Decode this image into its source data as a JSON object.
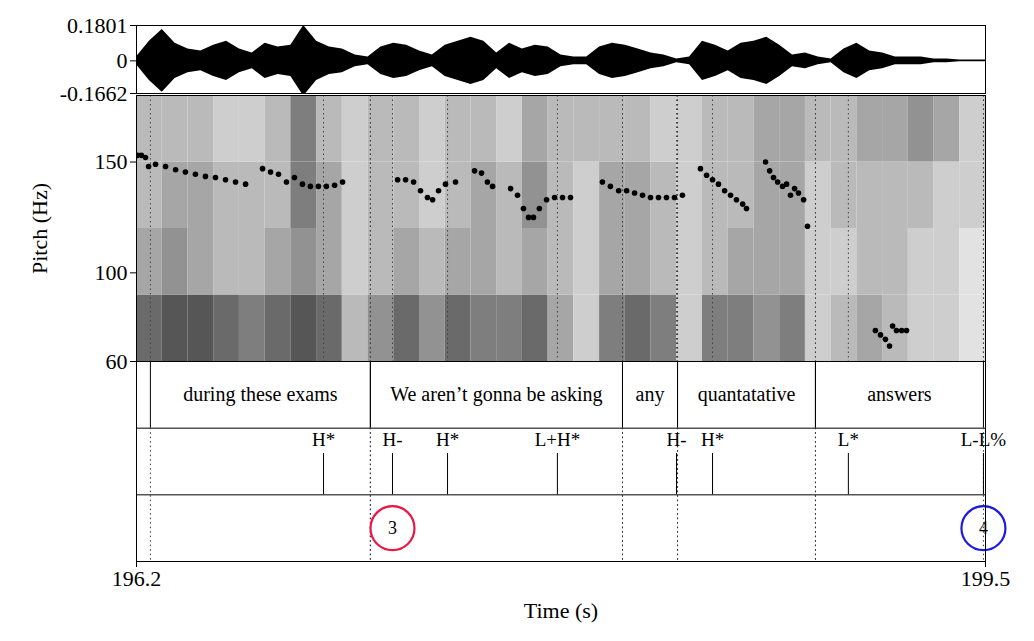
{
  "chart_data": {
    "type": "praat_figure",
    "xlabel": "Time (s)",
    "xlim": [
      196.2,
      199.5
    ],
    "xticks": [
      196.2,
      199.5
    ],
    "waveform": {
      "ylim": [
        -0.1662,
        0.1801
      ],
      "yticks": [
        0.1801,
        0,
        -0.1662
      ],
      "color": "#000000",
      "x": [
        196.2,
        196.25,
        196.3,
        196.35,
        196.4,
        196.45,
        196.5,
        196.55,
        196.6,
        196.65,
        196.7,
        196.75,
        196.8,
        196.85,
        196.9,
        196.95,
        197,
        197.05,
        197.1,
        197.15,
        197.2,
        197.25,
        197.3,
        197.35,
        197.4,
        197.45,
        197.5,
        197.55,
        197.6,
        197.65,
        197.7,
        197.75,
        197.8,
        197.85,
        197.9,
        197.95,
        198,
        198.05,
        198.1,
        198.15,
        198.2,
        198.25,
        198.3,
        198.35,
        198.4,
        198.45,
        198.5,
        198.55,
        198.6,
        198.65,
        198.7,
        198.75,
        198.8,
        198.85,
        198.9,
        198.95,
        199,
        199.05,
        199.1,
        199.15,
        199.2,
        199.25,
        199.3,
        199.35,
        199.4,
        199.45,
        199.5
      ],
      "values": [
        0.02,
        0.1,
        0.16,
        0.09,
        0.06,
        0.05,
        0.08,
        0.1,
        0.06,
        0.04,
        0.09,
        0.07,
        0.08,
        0.18,
        0.1,
        0.07,
        0.06,
        0.03,
        0.02,
        0.07,
        0.09,
        0.08,
        0.05,
        0.03,
        0.08,
        0.1,
        0.12,
        0.1,
        0.04,
        0.09,
        0.06,
        0.08,
        0.07,
        0.03,
        0.02,
        0.02,
        0.07,
        0.09,
        0.08,
        0.06,
        0.04,
        0.03,
        0.01,
        0.02,
        0.1,
        0.08,
        0.05,
        0.09,
        0.1,
        0.12,
        0.08,
        0.03,
        0.04,
        0.02,
        0.01,
        0.06,
        0.09,
        0.05,
        0.04,
        0.02,
        0.02,
        0.02,
        0.01,
        0.01,
        0.005,
        0.005,
        0.005
      ]
    },
    "spectrogram": {
      "x_bins": [
        196.2,
        196.3,
        196.4,
        196.5,
        196.6,
        196.7,
        196.8,
        196.9,
        197,
        197.1,
        197.2,
        197.3,
        197.4,
        197.5,
        197.6,
        197.7,
        197.8,
        197.9,
        198,
        198.1,
        198.2,
        198.3,
        198.4,
        198.5,
        198.6,
        198.7,
        198.8,
        198.9,
        199,
        199.1,
        199.2,
        199.3,
        199.4,
        199.5
      ],
      "bands": [
        [
          60,
          90
        ],
        [
          90,
          120
        ],
        [
          120,
          150
        ],
        [
          150,
          180
        ]
      ],
      "intensity_range": [
        0,
        1
      ],
      "intensity": [
        [
          0.7,
          0.8,
          0.8,
          0.7,
          0.6,
          0.7,
          0.8,
          0.7,
          0.3,
          0.5,
          0.7,
          0.5,
          0.7,
          0.6,
          0.6,
          0.7,
          0.4,
          0.2,
          0.6,
          0.7,
          0.6,
          0.2,
          0.6,
          0.6,
          0.5,
          0.6,
          0.2,
          0.3,
          0.4,
          0.3,
          0.2,
          0.2,
          0.1
        ],
        [
          0.4,
          0.5,
          0.4,
          0.3,
          0.3,
          0.4,
          0.5,
          0.4,
          0.2,
          0.3,
          0.4,
          0.3,
          0.4,
          0.4,
          0.3,
          0.4,
          0.3,
          0.2,
          0.4,
          0.4,
          0.3,
          0.2,
          0.3,
          0.4,
          0.4,
          0.4,
          0.2,
          0.2,
          0.3,
          0.3,
          0.2,
          0.2,
          0.1
        ],
        [
          0.3,
          0.4,
          0.4,
          0.3,
          0.3,
          0.3,
          0.6,
          0.4,
          0.2,
          0.3,
          0.3,
          0.2,
          0.3,
          0.4,
          0.3,
          0.5,
          0.3,
          0.2,
          0.4,
          0.4,
          0.3,
          0.2,
          0.3,
          0.3,
          0.4,
          0.4,
          0.2,
          0.3,
          0.3,
          0.3,
          0.3,
          0.2,
          0.2
        ],
        [
          0.3,
          0.3,
          0.3,
          0.2,
          0.2,
          0.3,
          0.6,
          0.3,
          0.2,
          0.3,
          0.3,
          0.2,
          0.3,
          0.3,
          0.2,
          0.4,
          0.3,
          0.3,
          0.3,
          0.3,
          0.2,
          0.2,
          0.3,
          0.3,
          0.4,
          0.4,
          0.3,
          0.3,
          0.4,
          0.4,
          0.5,
          0.4,
          0.2
        ]
      ]
    },
    "pitch": {
      "ylabel": "Pitch (Hz)",
      "ylim": [
        60,
        180
      ],
      "yticks": [
        60,
        100,
        150
      ],
      "color": "#000000",
      "marker": "circle",
      "x": [
        196.204,
        196.219,
        196.235,
        196.247,
        196.274,
        196.313,
        196.352,
        196.39,
        196.429,
        196.468,
        196.507,
        196.546,
        196.585,
        196.624,
        196.69,
        196.721,
        196.752,
        196.783,
        196.814,
        196.845,
        196.876,
        196.907,
        196.938,
        196.97,
        197.001,
        197.215,
        197.246,
        197.277,
        197.304,
        197.331,
        197.351,
        197.374,
        197.401,
        197.44,
        197.514,
        197.541,
        197.564,
        197.584,
        197.654,
        197.681,
        197.704,
        197.724,
        197.743,
        197.766,
        197.794,
        197.825,
        197.856,
        197.887,
        198.011,
        198.042,
        198.074,
        198.105,
        198.136,
        198.167,
        198.198,
        198.229,
        198.26,
        198.291,
        198.322,
        198.392,
        198.416,
        198.439,
        198.462,
        198.486,
        198.509,
        198.532,
        198.556,
        198.571,
        198.645,
        198.661,
        198.676,
        198.692,
        198.711,
        198.727,
        198.742,
        198.758,
        198.773,
        198.793,
        198.808,
        199.072,
        199.092,
        199.111,
        199.127,
        199.139,
        199.154,
        199.174,
        199.193
      ],
      "values": [
        153,
        153,
        152,
        148,
        149,
        148,
        146.5,
        145.5,
        144.5,
        143.5,
        143,
        142,
        141,
        140,
        147,
        145.5,
        144.5,
        141,
        143,
        140,
        139,
        139,
        139,
        139.5,
        141,
        142,
        142,
        141,
        137,
        134,
        133,
        137,
        140,
        141,
        146,
        145,
        141,
        139,
        138,
        135,
        129,
        125,
        125,
        129,
        133,
        134,
        134,
        134,
        141,
        139,
        137,
        137,
        136,
        135,
        134,
        134,
        134,
        134,
        135,
        147,
        144,
        142,
        140,
        137,
        135,
        133,
        131,
        129,
        150,
        146,
        143,
        141,
        139,
        140,
        135,
        138,
        136,
        133,
        121,
        74,
        72,
        70,
        67,
        76,
        74,
        74,
        74
      ]
    },
    "words": [
      {
        "text": "during these exams",
        "start": 196.254,
        "end": 197.109
      },
      {
        "text": "We aren’t gonna be asking",
        "start": 197.109,
        "end": 198.089
      },
      {
        "text": "any",
        "start": 198.089,
        "end": 198.303
      },
      {
        "text": "quantatative",
        "start": 198.303,
        "end": 198.839
      },
      {
        "text": "answers",
        "start": 198.839,
        "end": 199.492
      }
    ],
    "tones": [
      {
        "label": "H*",
        "time": 196.927
      },
      {
        "label": "H-",
        "time": 197.195
      },
      {
        "label": "H*",
        "time": 197.409
      },
      {
        "label": "L+H*",
        "time": 197.836
      },
      {
        "label": "H-",
        "time": 198.299
      },
      {
        "label": "H*",
        "time": 198.439
      },
      {
        "label": "L*",
        "time": 198.967
      },
      {
        "label": "L-L%",
        "time": 199.492
      }
    ],
    "breaks": [
      {
        "label": "3",
        "time": 197.195,
        "color": "#e8184a"
      },
      {
        "label": "4",
        "time": 199.492,
        "color": "#1c1cdc"
      }
    ]
  }
}
